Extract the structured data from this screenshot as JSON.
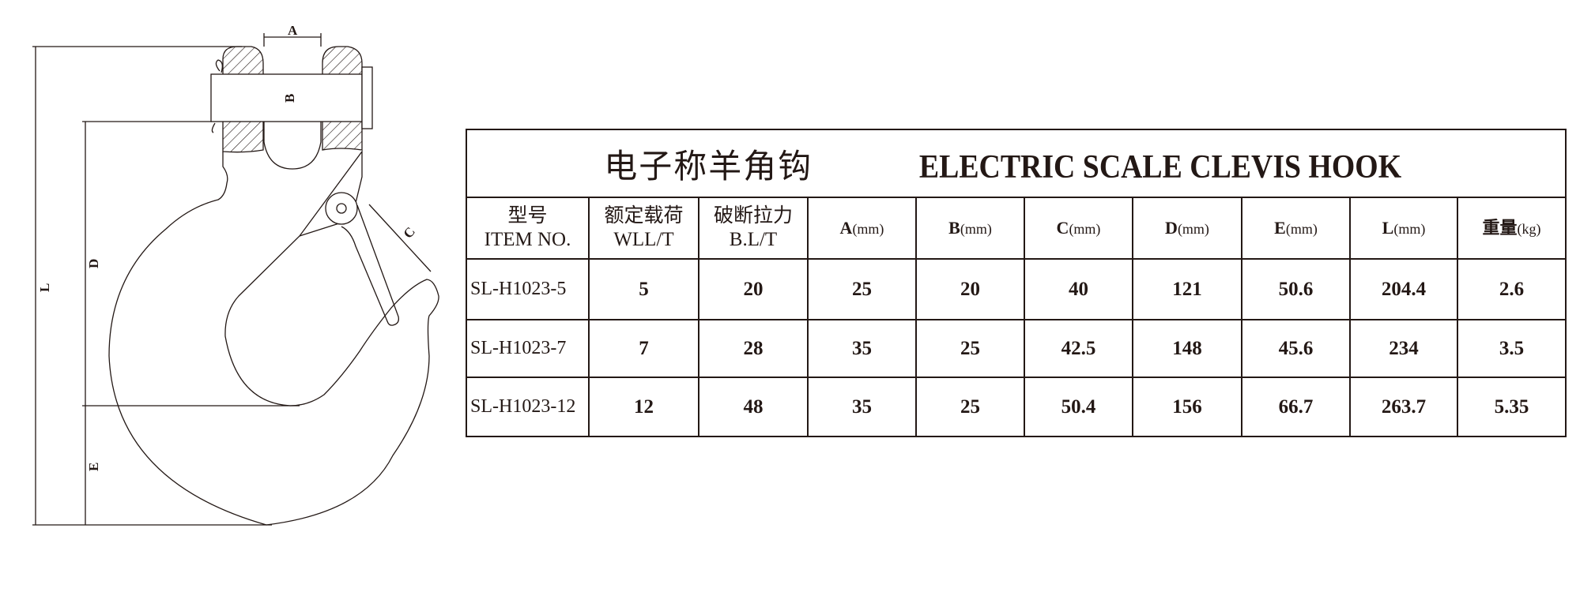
{
  "drawing": {
    "dimension_labels": {
      "A": "A",
      "B": "B",
      "C": "C",
      "D": "D",
      "E": "E",
      "L": "L"
    }
  },
  "table": {
    "title_cn": "电子称羊角钩",
    "title_en": "ELECTRIC SCALE CLEVIS HOOK",
    "headers": [
      {
        "line1": "型号",
        "line2": "ITEM NO."
      },
      {
        "line1": "额定载荷",
        "line2": "WLL/T"
      },
      {
        "line1": "破断拉力",
        "line2": "B.L/T"
      },
      {
        "label": "A",
        "unit": "(mm)"
      },
      {
        "label": "B",
        "unit": "(mm)"
      },
      {
        "label": "C",
        "unit": "(mm)"
      },
      {
        "label": "D",
        "unit": "(mm)"
      },
      {
        "label": "E",
        "unit": "(mm)"
      },
      {
        "label": "L",
        "unit": "(mm)"
      },
      {
        "label": "重量",
        "unit": "(kg)"
      }
    ],
    "rows": [
      [
        "SL-H1023-5",
        "5",
        "20",
        "25",
        "20",
        "40",
        "121",
        "50.6",
        "204.4",
        "2.6"
      ],
      [
        "SL-H1023-7",
        "7",
        "28",
        "35",
        "25",
        "42.5",
        "148",
        "45.6",
        "234",
        "3.5"
      ],
      [
        "SL-H1023-12",
        "12",
        "48",
        "35",
        "25",
        "50.4",
        "156",
        "66.7",
        "263.7",
        "5.35"
      ]
    ]
  }
}
